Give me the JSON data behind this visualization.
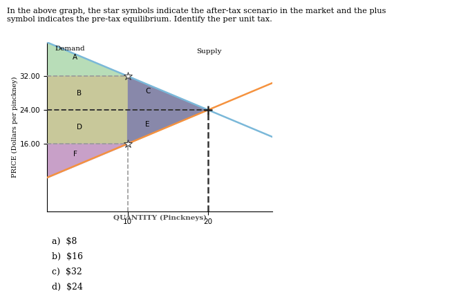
{
  "title_text": "In the above graph, the star symbols indicate the after-tax scenario in the market and the plus\nsymbol indicates the pre-tax equilibrium. Identify the per unit tax.",
  "xlabel": "QUANTITY (Pinckneys)",
  "ylabel": "PRICE (Dollars per pinckney)",
  "xlim": [
    0,
    28
  ],
  "ylim": [
    0,
    40
  ],
  "x_ticks": [
    10,
    20
  ],
  "y_ticks": [
    16.0,
    24.0,
    32.0
  ],
  "y_tick_labels": [
    "16.00",
    "24.00",
    "32.00"
  ],
  "price_32": 32.0,
  "price_24": 24.0,
  "price_16": 16.0,
  "qty_10": 10,
  "qty_20": 20,
  "demand_color": "#7ab8d9",
  "supply_color": "#f5923e",
  "region_A_color": "#b8ddb8",
  "region_B_color": "#c8c89a",
  "region_C_color": "#8888aa",
  "region_D_color": "#c8c89a",
  "region_E_color": "#8888aa",
  "region_F_color": "#c8a0c8",
  "dashed_gray_color": "#999999",
  "dashed_black_color": "#333333",
  "label_A": "A",
  "label_B": "B",
  "label_C": "C",
  "label_D": "D",
  "label_E": "E",
  "label_F": "F",
  "demand_label": "Demand",
  "supply_label": "Supply",
  "answers": [
    "a)  $8",
    "b)  $16",
    "c)  $32",
    "d)  $24"
  ],
  "qty_band_color": "#e8e8e8",
  "background_color": "#ffffff",
  "supply_x0": 0,
  "supply_p0": 8,
  "supply_slope": 0.8,
  "demand_x0": 0,
  "demand_p0": 40,
  "demand_slope": -0.8
}
